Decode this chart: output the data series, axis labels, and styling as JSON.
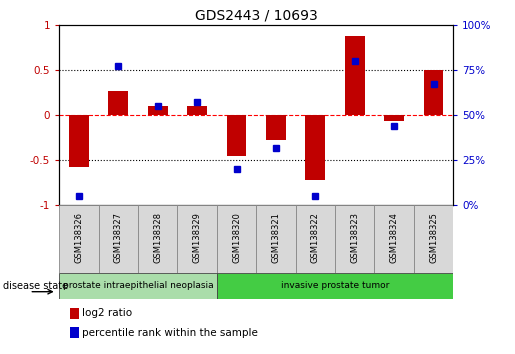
{
  "title": "GDS2443 / 10693",
  "samples": [
    "GSM138326",
    "GSM138327",
    "GSM138328",
    "GSM138329",
    "GSM138320",
    "GSM138321",
    "GSM138322",
    "GSM138323",
    "GSM138324",
    "GSM138325"
  ],
  "log2_ratio": [
    -0.58,
    0.27,
    0.1,
    0.1,
    -0.45,
    -0.28,
    -0.72,
    0.88,
    -0.07,
    0.5
  ],
  "percentile_rank": [
    5,
    77,
    55,
    57,
    20,
    32,
    5,
    80,
    44,
    67
  ],
  "disease_state_groups": [
    {
      "label": "prostate intraepithelial neoplasia",
      "start": 0,
      "end": 4,
      "color": "#aaddaa"
    },
    {
      "label": "invasive prostate tumor",
      "start": 4,
      "end": 10,
      "color": "#44cc44"
    }
  ],
  "bar_color": "#C00000",
  "dot_color": "#0000CC",
  "ylim_left": [
    -1.0,
    1.0
  ],
  "ylim_right": [
    0,
    100
  ],
  "yticks_left": [
    -1.0,
    -0.5,
    0.0,
    0.5,
    1.0
  ],
  "yticks_right": [
    0,
    25,
    50,
    75,
    100
  ],
  "ytick_labels_left": [
    "-1",
    "-0.5",
    "0",
    "0.5",
    "1"
  ],
  "ytick_labels_right": [
    "0%",
    "25%",
    "50%",
    "75%",
    "100%"
  ],
  "hlines": [
    -0.5,
    0.0,
    0.5
  ],
  "hline_styles": [
    "dotted",
    "dashed",
    "dotted"
  ],
  "hline_colors": [
    "black",
    "red",
    "black"
  ],
  "legend_items": [
    {
      "label": "log2 ratio",
      "color": "#C00000"
    },
    {
      "label": "percentile rank within the sample",
      "color": "#0000CC"
    }
  ],
  "disease_state_label": "disease state",
  "bar_width": 0.5
}
